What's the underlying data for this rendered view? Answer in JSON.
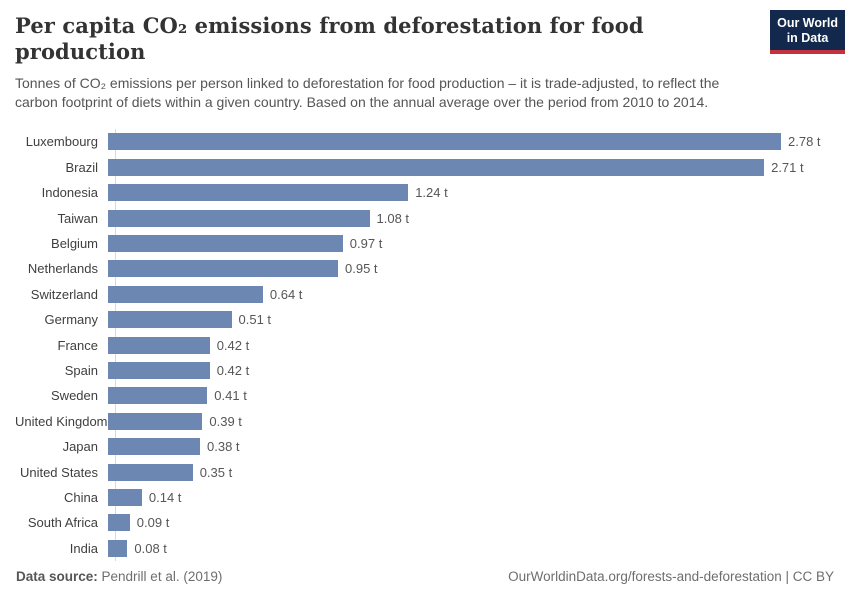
{
  "header": {
    "title": "Per capita CO₂ emissions from deforestation for food production",
    "subtitle": "Tonnes of CO₂ emissions per person linked to deforestation for food production – it is trade-adjusted, to reflect the carbon footprint of diets within a given country. Based on the annual average over the period from 2010 to 2014.",
    "logo": {
      "line1": "Our World",
      "line2": "in Data"
    }
  },
  "chart_data": {
    "type": "bar",
    "orientation": "horizontal",
    "title": "Per capita CO₂ emissions from deforestation for food production",
    "unit": "t",
    "xlim": [
      0,
      2.78
    ],
    "grid": false,
    "bar_color": "#6c87b2",
    "categories": [
      "Luxembourg",
      "Brazil",
      "Indonesia",
      "Taiwan",
      "Belgium",
      "Netherlands",
      "Switzerland",
      "Germany",
      "France",
      "Spain",
      "Sweden",
      "United Kingdom",
      "Japan",
      "United States",
      "China",
      "South Africa",
      "India"
    ],
    "values": [
      2.78,
      2.71,
      1.24,
      1.08,
      0.97,
      0.95,
      0.64,
      0.51,
      0.42,
      0.42,
      0.41,
      0.39,
      0.38,
      0.35,
      0.14,
      0.09,
      0.08
    ],
    "value_labels": [
      "2.78 t",
      "2.71 t",
      "1.24 t",
      "1.08 t",
      "0.97 t",
      "0.95 t",
      "0.64 t",
      "0.51 t",
      "0.42 t",
      "0.42 t",
      "0.41 t",
      "0.39 t",
      "0.38 t",
      "0.35 t",
      "0.14 t",
      "0.09 t",
      "0.08 t"
    ]
  },
  "footer": {
    "source_label": "Data source:",
    "source_value": " Pendrill et al. (2019)",
    "link": "OurWorldinData.org/forests-and-deforestation | CC BY"
  },
  "colors": {
    "bar": "#6c87b2",
    "logo_bg": "#12294d",
    "logo_stripe": "#c4333d",
    "axis": "#d9d9d9"
  }
}
